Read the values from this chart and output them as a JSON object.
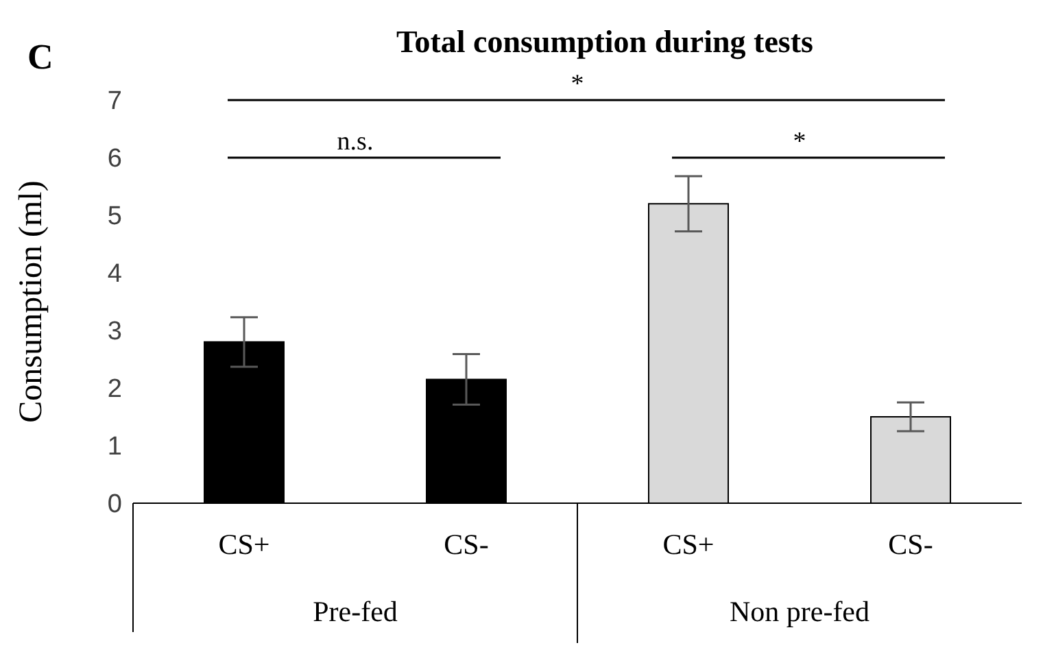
{
  "chart_data": {
    "type": "bar",
    "title": "Total consumption during tests",
    "ylabel": "Consumption (ml)",
    "categories": [
      "CS+",
      "CS-",
      "CS+",
      "CS-"
    ],
    "values": [
      2.8,
      2.15,
      5.2,
      1.5
    ],
    "errors": [
      0.43,
      0.44,
      0.48,
      0.25
    ],
    "colors": [
      "#000000",
      "#000000",
      "#d9d9d9",
      "#d9d9d9"
    ],
    "ylim": [
      0,
      7
    ],
    "yticks": [
      0,
      1,
      2,
      3,
      4,
      5,
      6,
      7
    ],
    "grid": false,
    "legend": false,
    "annotations": [
      "C",
      "*",
      "n.s.",
      "*",
      "Pre-fed",
      "Non pre-fed"
    ]
  }
}
